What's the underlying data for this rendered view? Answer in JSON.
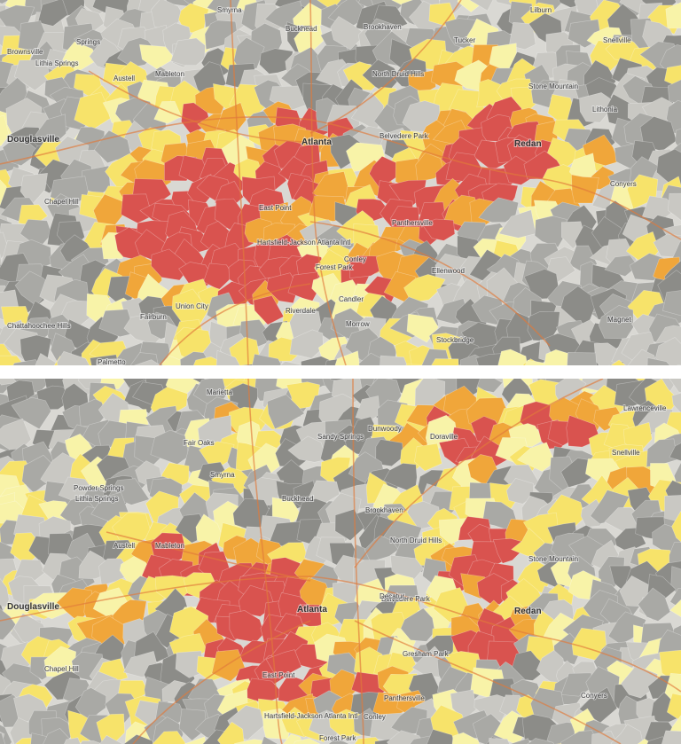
{
  "colors": {
    "high": "#d9534f",
    "med_high": "#f0a63a",
    "med": "#f7e36a",
    "low": "#f8f3a8",
    "gray_dark": "#8c8c88",
    "gray_mid": "#a9a9a5",
    "gray_light": "#c9c8c3",
    "background": "#d9d8d3",
    "highway": "#e07a3a"
  },
  "maps": [
    {
      "id": "top",
      "labels": {
        "smyrna": "Smyrna",
        "buckhead": "Buckhead",
        "brookhaven": "Brookhaven",
        "tucker": "Tucker",
        "lilburn": "Lilburn",
        "snellville": "Snellville",
        "austell": "Austell",
        "mableton": "Mableton",
        "north_druid_hills": "North Druid Hills",
        "dunwoody_area": "Springs",
        "douglasville": "Douglasville",
        "atlanta": "Atlanta",
        "belvedere_park": "Belvedere Park",
        "stone_mountain": "Stone Mountain",
        "redan": "Redan",
        "lithonia": "Lithonia",
        "chapel_hill": "Chapel Hill",
        "east_point": "East Point",
        "panthersville": "Panthersville",
        "forest_park": "Forest Park",
        "fairburn": "Fairburn",
        "union_city": "Union City",
        "riverdale": "Riverdale",
        "ellenwood": "Ellenwood",
        "conley": "Conley",
        "stockbridge": "Stockbridge",
        "palmetto": "Palmetto",
        "chattahoochee_hills": "Chattahoochee Hills",
        "airport": "Hartsfield-Jackson Atlanta Intl",
        "candler": "Candler",
        "morrow": "Morrow",
        "magnet": "Magnet",
        "conyers": "Conyers",
        "lithia_springs": "Lithia Springs",
        "browns_mill": "Brownsville"
      }
    },
    {
      "id": "bottom",
      "labels": {
        "marietta": "Marietta",
        "sandy_springs": "Sandy Springs",
        "dunwoody": "Dunwoody",
        "doraville": "Doraville",
        "fair_oaks": "Fair Oaks",
        "smyrna": "Smyrna",
        "brookhaven": "Brookhaven",
        "buckhead": "Buckhead",
        "mableton": "Mableton",
        "austell": "Austell",
        "north_druid_hills": "North Druid Hills",
        "lawrenceville": "Lawrenceville",
        "atlanta": "Atlanta",
        "belvedere_park": "Belvedere Park",
        "stone_mountain": "Stone Mountain",
        "redan": "Redan",
        "douglasville": "Douglasville",
        "chapel_hill": "Chapel Hill",
        "east_point": "East Point",
        "panthersville": "Panthersville",
        "forest_park": "Forest Park",
        "conley": "Conley",
        "airport": "Hartsfield-Jackson Atlanta Intl",
        "powder_springs": "Powder Springs",
        "lithia_springs": "Lithia Springs",
        "decatur": "Decatur",
        "conyers": "Conyers",
        "snellville": "Snellville",
        "gresham": "Gresham Park"
      }
    }
  ]
}
